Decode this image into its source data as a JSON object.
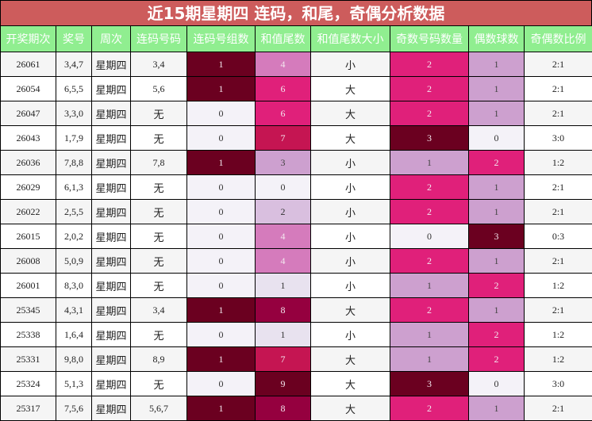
{
  "title": "近15期星期四 连码，和尾，奇偶分析数据",
  "headers": [
    "开奖期次",
    "奖号",
    "周次",
    "连码号码",
    "连码号组数",
    "和值尾数",
    "和值尾数大小",
    "奇数号码数量",
    "偶数球数",
    "奇偶数比例"
  ],
  "palette": {
    "zero": "#f4f2f8",
    "one_light": "#e8e2ef",
    "two_light": "#d9bfdf",
    "lilac": "#cda0cf",
    "orchid": "#d57bbc",
    "pink": "#e0207a",
    "crimson": "#c51552",
    "wine": "#95003f",
    "maroon": "#6b0020"
  },
  "rows": [
    [
      "26061",
      "3,4,7",
      "星期四",
      "3,4",
      "1",
      "4",
      "小",
      "2",
      "1",
      "2:1"
    ],
    [
      "26054",
      "6,5,5",
      "星期四",
      "5,6",
      "1",
      "6",
      "大",
      "2",
      "1",
      "2:1"
    ],
    [
      "26047",
      "3,3,0",
      "星期四",
      "无",
      "0",
      "6",
      "大",
      "2",
      "1",
      "2:1"
    ],
    [
      "26043",
      "1,7,9",
      "星期四",
      "无",
      "0",
      "7",
      "大",
      "3",
      "0",
      "3:0"
    ],
    [
      "26036",
      "7,8,8",
      "星期四",
      "7,8",
      "1",
      "3",
      "小",
      "1",
      "2",
      "1:2"
    ],
    [
      "26029",
      "6,1,3",
      "星期四",
      "无",
      "0",
      "0",
      "小",
      "2",
      "1",
      "2:1"
    ],
    [
      "26022",
      "2,5,5",
      "星期四",
      "无",
      "0",
      "2",
      "小",
      "2",
      "1",
      "2:1"
    ],
    [
      "26015",
      "2,0,2",
      "星期四",
      "无",
      "0",
      "4",
      "小",
      "0",
      "3",
      "0:3"
    ],
    [
      "26008",
      "5,0,9",
      "星期四",
      "无",
      "0",
      "4",
      "小",
      "2",
      "1",
      "2:1"
    ],
    [
      "26001",
      "8,3,0",
      "星期四",
      "无",
      "0",
      "1",
      "小",
      "1",
      "2",
      "1:2"
    ],
    [
      "25345",
      "4,3,1",
      "星期四",
      "3,4",
      "1",
      "8",
      "大",
      "2",
      "1",
      "2:1"
    ],
    [
      "25338",
      "1,6,4",
      "星期四",
      "无",
      "0",
      "1",
      "小",
      "1",
      "2",
      "1:2"
    ],
    [
      "25331",
      "9,8,0",
      "星期四",
      "8,9",
      "1",
      "7",
      "大",
      "1",
      "2",
      "1:2"
    ],
    [
      "25324",
      "5,1,3",
      "星期四",
      "无",
      "0",
      "9",
      "大",
      "3",
      "0",
      "3:0"
    ],
    [
      "25317",
      "7,5,6",
      "星期四",
      "5,6,7",
      "1",
      "8",
      "大",
      "2",
      "1",
      "2:1"
    ]
  ]
}
